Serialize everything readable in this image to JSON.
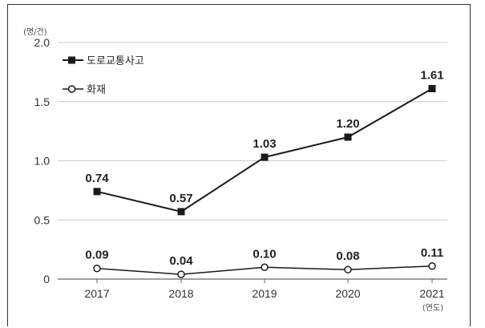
{
  "chart_data": {
    "type": "line",
    "ylabel": "(명/건)",
    "xunit": "(연도)",
    "categories": [
      "2017",
      "2018",
      "2019",
      "2020",
      "2021"
    ],
    "ylim": [
      0,
      2.0
    ],
    "yticks": [
      "0",
      "0.5",
      "1.0",
      "1.5",
      "2.0"
    ],
    "grid": true,
    "legend_position": "top-left",
    "series": [
      {
        "name": "도로교통사고",
        "marker": "filled-square",
        "color": "#1a1a1a",
        "values": [
          0.74,
          0.57,
          1.03,
          1.2,
          1.61
        ],
        "labels": [
          "0.74",
          "0.57",
          "1.03",
          "1.20",
          "1.61"
        ]
      },
      {
        "name": "화재",
        "marker": "hollow-circle",
        "color": "#1a1a1a",
        "values": [
          0.09,
          0.04,
          0.1,
          0.08,
          0.11
        ],
        "labels": [
          "0.09",
          "0.04",
          "0.10",
          "0.08",
          "0.11"
        ]
      }
    ]
  }
}
